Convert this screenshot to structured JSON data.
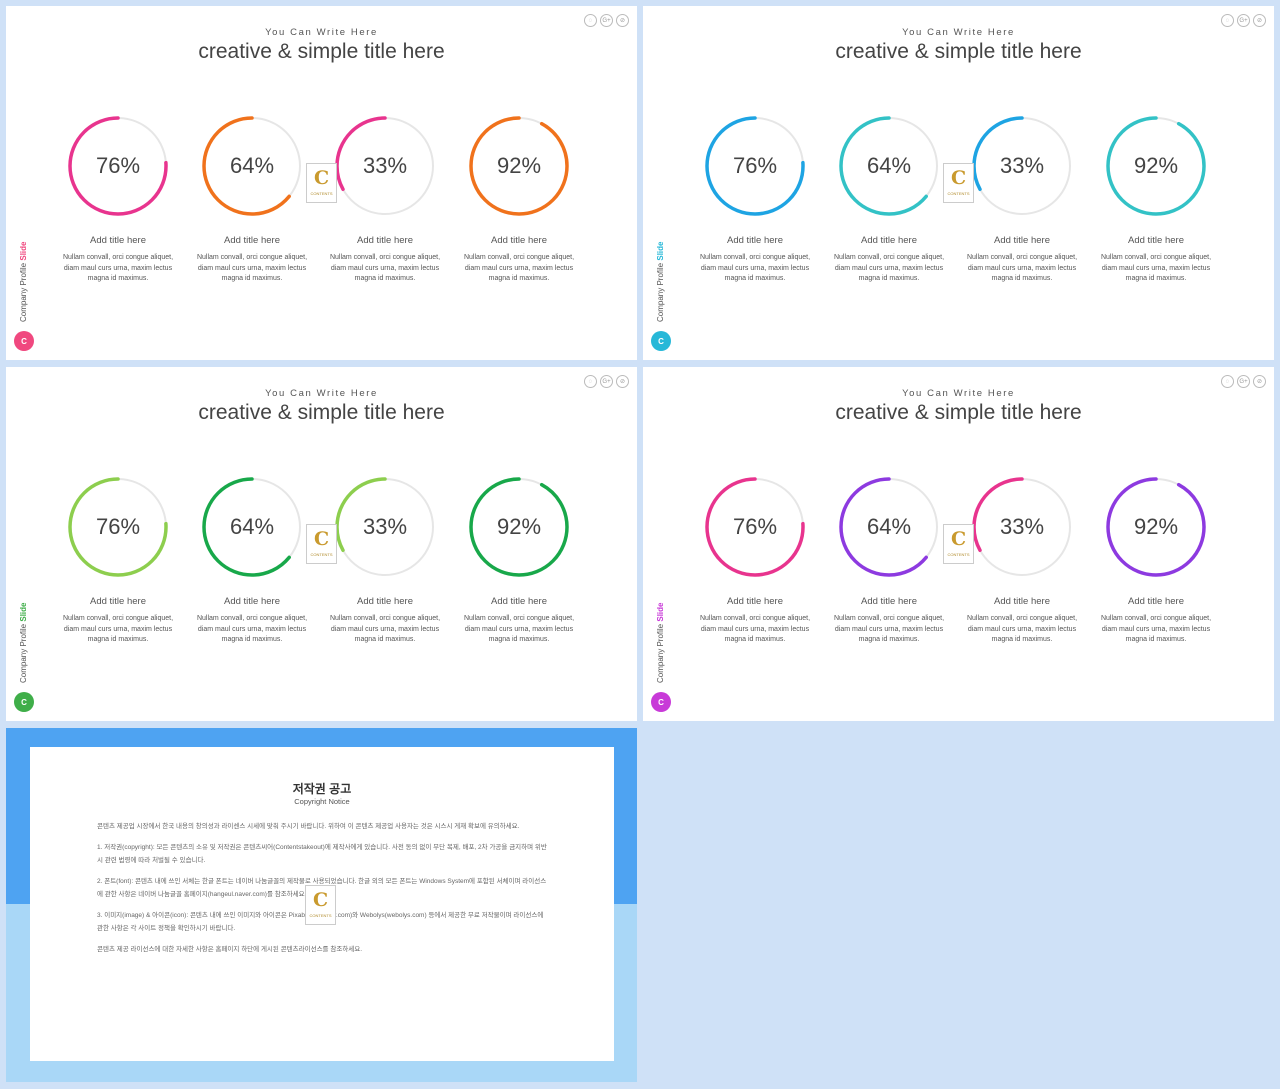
{
  "common": {
    "subtitle": "You Can Write Here",
    "title": "creative & simple title here",
    "side_label_main": "Company Profile ",
    "side_label_bold": "Slide",
    "side_letter": "C",
    "social_icons": [
      "whatsapp-icon",
      "google-plus-icon",
      "share-icon"
    ],
    "social_glyphs": [
      "◌",
      "G+",
      "⊘"
    ],
    "logo_letter": "C",
    "logo_text": "CONTENTS",
    "item_title": "Add title here",
    "item_desc": "Nullam convall, orci congue aliquet, diam maul curs urna, maxim lectus magna id maximus."
  },
  "slides": [
    {
      "accent": "#f0487f",
      "items": [
        {
          "pct_label": "76%",
          "value": 76,
          "color": "#e8348e"
        },
        {
          "pct_label": "64%",
          "value": 64,
          "color": "#f0721c"
        },
        {
          "pct_label": "33%",
          "value": 33,
          "color": "#e8348e"
        },
        {
          "pct_label": "92%",
          "value": 92,
          "color": "#f0721c"
        }
      ]
    },
    {
      "accent": "#27b8d8",
      "items": [
        {
          "pct_label": "76%",
          "value": 76,
          "color": "#1ea4e3"
        },
        {
          "pct_label": "64%",
          "value": 64,
          "color": "#33c2c6"
        },
        {
          "pct_label": "33%",
          "value": 33,
          "color": "#1ea4e3"
        },
        {
          "pct_label": "92%",
          "value": 92,
          "color": "#33c2c6"
        }
      ]
    },
    {
      "accent": "#3fae49",
      "items": [
        {
          "pct_label": "76%",
          "value": 76,
          "color": "#8dce4e"
        },
        {
          "pct_label": "64%",
          "value": 64,
          "color": "#18a84a"
        },
        {
          "pct_label": "33%",
          "value": 33,
          "color": "#8dce4e"
        },
        {
          "pct_label": "92%",
          "value": 92,
          "color": "#18a84a"
        }
      ]
    },
    {
      "accent": "#c83ad8",
      "items": [
        {
          "pct_label": "76%",
          "value": 76,
          "color": "#e8348e"
        },
        {
          "pct_label": "64%",
          "value": 64,
          "color": "#8d3ae0"
        },
        {
          "pct_label": "33%",
          "value": 33,
          "color": "#e8348e"
        },
        {
          "pct_label": "92%",
          "value": 92,
          "color": "#8d3ae0"
        }
      ]
    }
  ],
  "copyright": {
    "title": "저작권 공고",
    "subtitle": "Copyright Notice",
    "paragraphs": [
      "콘텐츠 제공업 시장에서 한국 내용의 창의성과 라이센스 시세에 맞춰 주시기 바랍니다. 위하여 이 콘텐츠 제공업 사용자는 것은 시스시 게재 확보에 유의하세요.",
      "1. 저작권(copyright): 모든 콘텐츠의 소유 및 저작권은 콘텐츠씨어(Contentstakeout)에 제작사에게 있습니다. 사전 동의 없이 무단 복제, 배포, 2차 가공을 금지하며 위반 시 관련 법령에 따라 처벌될 수 있습니다.",
      "2. 폰트(font): 콘텐츠 내에 쓰인 서체는 한글 폰트는 네이버 나눔글꼴의 제작물로 사용되었습니다. 한글 외의 모든 폰트는 Windows System에 포함된 서체이며 라이선스에 관한 사항은 네이버 나눔글꼴 홈페이지(hangeul.naver.com)를 참조하세요.",
      "3. 이미지(image) & 아이콘(icon): 콘텐츠 내에 쓰인 이미지와 아이콘은 Pixabay(pixabay.com)와 Webolys(webolys.com) 등에서 제공한 무료 저작물이며 라이선스에 관한 사항은 각 사이트 정책을 확인하시기 바랍니다.",
      "콘텐츠 제공 라이선스에 대한 자세한 사항은 홈페이지 하단에 게시된 콘텐츠라이선스를 참조하세요."
    ]
  }
}
